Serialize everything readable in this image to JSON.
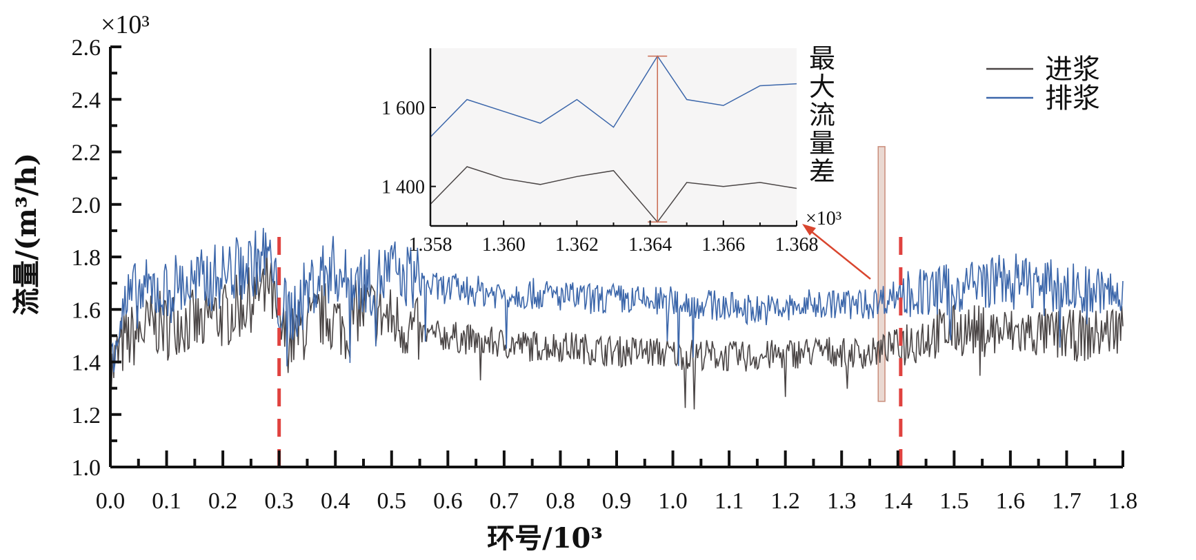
{
  "chart_data": {
    "type": "line",
    "main": {
      "xlabel": "环号/10³",
      "ylabel": "流量/(m³/h)",
      "y_multiplier": "×10³",
      "xlim": [
        0.0,
        1.8
      ],
      "ylim": [
        1.0,
        2.6
      ],
      "x_ticks": [
        "0.0",
        "0.1",
        "0.2",
        "0.3",
        "0.4",
        "0.5",
        "0.6",
        "0.7",
        "0.8",
        "0.9",
        "1.0",
        "1.1",
        "1.2",
        "1.3",
        "1.4",
        "1.5",
        "1.6",
        "1.7",
        "1.8"
      ],
      "y_ticks": [
        "1.0",
        "1.2",
        "1.4",
        "1.6",
        "1.8",
        "2.0",
        "2.2",
        "2.4",
        "2.6"
      ],
      "vertical_markers": [
        0.3,
        1.405
      ],
      "highlight_range": [
        1.358,
        1.368
      ],
      "series": [
        {
          "name": "进浆",
          "color": "#4a4545",
          "x": [
            0.0,
            0.02,
            0.04,
            0.06,
            0.08,
            0.1,
            0.12,
            0.14,
            0.16,
            0.18,
            0.2,
            0.22,
            0.24,
            0.26,
            0.28,
            0.3,
            0.32,
            0.34,
            0.36,
            0.38,
            0.4,
            0.42,
            0.44,
            0.46,
            0.48,
            0.5,
            0.52,
            0.54,
            0.56,
            0.58,
            0.6,
            0.65,
            0.7,
            0.75,
            0.8,
            0.85,
            0.9,
            0.95,
            1.0,
            1.05,
            1.1,
            1.15,
            1.2,
            1.25,
            1.3,
            1.35,
            1.4,
            1.45,
            1.5,
            1.55,
            1.6,
            1.65,
            1.7,
            1.75,
            1.8
          ],
          "y": [
            1.35,
            1.46,
            1.5,
            1.52,
            1.55,
            1.53,
            1.56,
            1.55,
            1.54,
            1.58,
            1.57,
            1.6,
            1.62,
            1.66,
            1.72,
            1.52,
            1.48,
            1.52,
            1.55,
            1.58,
            1.56,
            1.52,
            1.6,
            1.6,
            1.58,
            1.56,
            1.54,
            1.52,
            1.5,
            1.5,
            1.5,
            1.48,
            1.47,
            1.46,
            1.46,
            1.45,
            1.44,
            1.44,
            1.43,
            1.43,
            1.42,
            1.42,
            1.43,
            1.44,
            1.44,
            1.43,
            1.47,
            1.5,
            1.52,
            1.52,
            1.51,
            1.51,
            1.5,
            1.5,
            1.54
          ]
        },
        {
          "name": "排浆",
          "color": "#3b66aa",
          "x": [
            0.0,
            0.02,
            0.04,
            0.06,
            0.08,
            0.1,
            0.12,
            0.14,
            0.16,
            0.18,
            0.2,
            0.22,
            0.24,
            0.26,
            0.28,
            0.3,
            0.32,
            0.34,
            0.36,
            0.38,
            0.4,
            0.42,
            0.44,
            0.46,
            0.48,
            0.5,
            0.52,
            0.54,
            0.56,
            0.58,
            0.6,
            0.65,
            0.7,
            0.75,
            0.8,
            0.85,
            0.9,
            0.95,
            1.0,
            1.05,
            1.1,
            1.15,
            1.2,
            1.25,
            1.3,
            1.35,
            1.4,
            1.45,
            1.5,
            1.55,
            1.6,
            1.65,
            1.7,
            1.75,
            1.8
          ],
          "y": [
            1.45,
            1.58,
            1.65,
            1.66,
            1.68,
            1.66,
            1.7,
            1.69,
            1.7,
            1.72,
            1.73,
            1.75,
            1.76,
            1.78,
            1.82,
            1.62,
            1.58,
            1.64,
            1.7,
            1.74,
            1.76,
            1.7,
            1.72,
            1.7,
            1.72,
            1.75,
            1.74,
            1.72,
            1.7,
            1.68,
            1.68,
            1.67,
            1.66,
            1.66,
            1.65,
            1.64,
            1.64,
            1.63,
            1.63,
            1.62,
            1.61,
            1.6,
            1.6,
            1.62,
            1.62,
            1.62,
            1.66,
            1.66,
            1.68,
            1.7,
            1.72,
            1.7,
            1.68,
            1.67,
            1.64
          ]
        }
      ]
    },
    "inset": {
      "x_multiplier": "×10³",
      "ylabel": "最大流量差",
      "xlim": [
        1.358,
        1.368
      ],
      "ylim": [
        1300,
        1750
      ],
      "x_ticks": [
        "1.358",
        "1.360",
        "1.362",
        "1.364",
        "1.366",
        "1.368"
      ],
      "y_ticks": [
        "1 400",
        "1 600"
      ],
      "y_tick_values": [
        1400,
        1600
      ],
      "max_diff_x": 1.3642,
      "max_diff_range": [
        1310,
        1730
      ],
      "series": [
        {
          "name": "进浆",
          "color": "#4a4545",
          "x": [
            1.358,
            1.359,
            1.36,
            1.361,
            1.362,
            1.363,
            1.3642,
            1.365,
            1.366,
            1.367,
            1.368
          ],
          "y": [
            1355,
            1450,
            1420,
            1405,
            1425,
            1440,
            1310,
            1410,
            1400,
            1410,
            1395
          ]
        },
        {
          "name": "排浆",
          "color": "#3b66aa",
          "x": [
            1.358,
            1.359,
            1.36,
            1.361,
            1.362,
            1.363,
            1.3642,
            1.365,
            1.366,
            1.367,
            1.368
          ],
          "y": [
            1525,
            1620,
            1590,
            1560,
            1620,
            1550,
            1730,
            1620,
            1605,
            1655,
            1660
          ]
        }
      ]
    },
    "legend": {
      "placement": "top-right",
      "items": [
        {
          "label": "进浆",
          "color": "#4a4545"
        },
        {
          "label": "排浆",
          "color": "#3b66aa"
        }
      ]
    }
  }
}
